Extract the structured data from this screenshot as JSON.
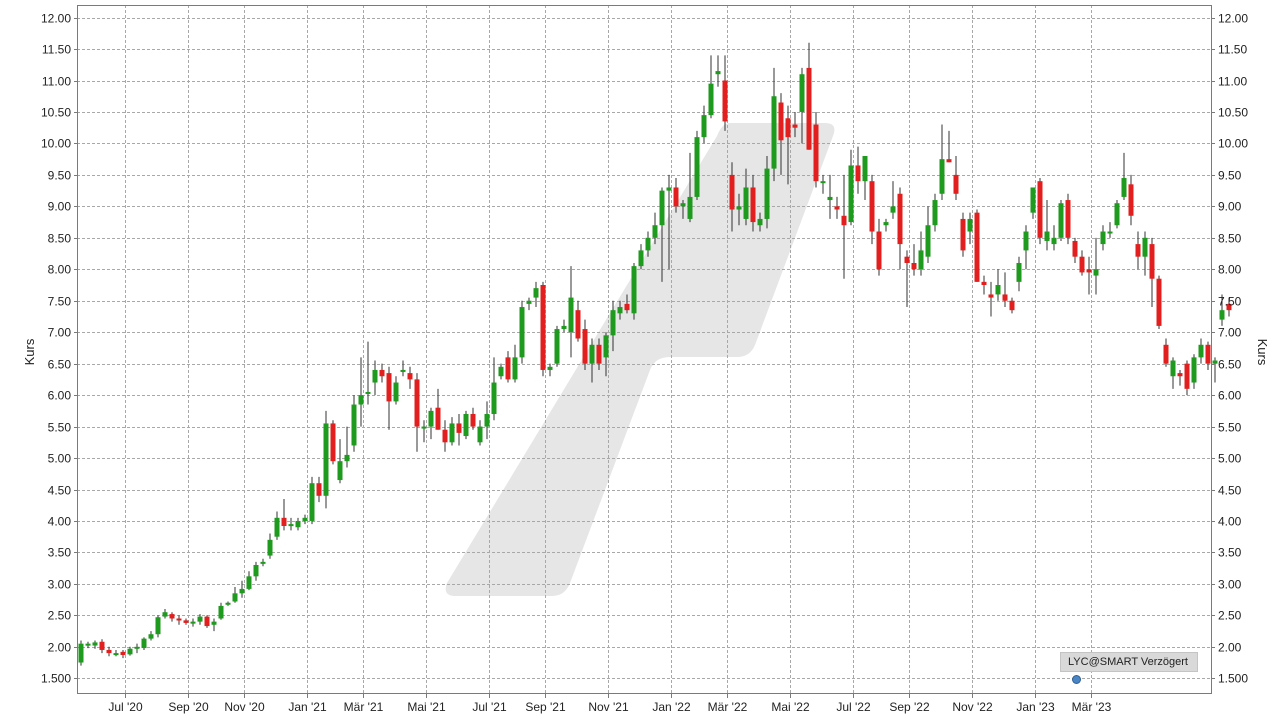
{
  "chart_data": {
    "type": "candlestick",
    "ylabel_left": "Kurs",
    "ylabel_right": "Kurs",
    "ylim": [
      1.25,
      12.2
    ],
    "y_ticks": [
      "1.500",
      "2.00",
      "2.50",
      "3.00",
      "3.50",
      "4.00",
      "4.50",
      "5.00",
      "5.50",
      "6.00",
      "6.50",
      "7.00",
      "7.50",
      "8.00",
      "8.50",
      "9.00",
      "9.50",
      "10.00",
      "10.50",
      "11.00",
      "11.50",
      "12.00"
    ],
    "y_tick_values": [
      1.5,
      2.0,
      2.5,
      3.0,
      3.5,
      4.0,
      4.5,
      5.0,
      5.5,
      6.0,
      6.5,
      7.0,
      7.5,
      8.0,
      8.5,
      9.0,
      9.5,
      10.0,
      10.5,
      11.0,
      11.5,
      12.0
    ],
    "x_ticks": [
      "Jul '20",
      "Sep '20",
      "Nov '20",
      "Jan '21",
      "Mär '21",
      "Mai '21",
      "Jul '21",
      "Sep '21",
      "Nov '21",
      "Jan '22",
      "Mär '22",
      "Mai '22",
      "Jul '22",
      "Sep '22",
      "Nov '22",
      "Jan '23",
      "Mär '23"
    ],
    "x_tick_week": [
      4,
      13,
      21,
      30,
      38,
      47,
      56,
      64,
      73,
      82,
      90,
      99,
      108,
      116,
      125,
      134,
      142
    ],
    "grid": true,
    "colors": {
      "up": "#1e9a1e",
      "down": "#e31e1e",
      "grid": "#a8a8a8",
      "axis": "#7a7a7a",
      "watermark": "#e6e6e6"
    },
    "candles": [
      {
        "o": 1.75,
        "h": 2.1,
        "l": 1.7,
        "c": 2.05
      },
      {
        "o": 2.03,
        "h": 2.08,
        "l": 1.98,
        "c": 2.05
      },
      {
        "o": 2.02,
        "h": 2.1,
        "l": 1.97,
        "c": 2.07
      },
      {
        "o": 2.08,
        "h": 2.12,
        "l": 1.9,
        "c": 1.95
      },
      {
        "o": 1.95,
        "h": 2.0,
        "l": 1.85,
        "c": 1.9
      },
      {
        "o": 1.9,
        "h": 1.95,
        "l": 1.85,
        "c": 1.9
      },
      {
        "o": 1.92,
        "h": 1.95,
        "l": 1.82,
        "c": 1.87
      },
      {
        "o": 1.88,
        "h": 2.0,
        "l": 1.86,
        "c": 1.97
      },
      {
        "o": 1.97,
        "h": 2.05,
        "l": 1.9,
        "c": 2.0
      },
      {
        "o": 1.98,
        "h": 2.15,
        "l": 1.95,
        "c": 2.13
      },
      {
        "o": 2.13,
        "h": 2.25,
        "l": 2.1,
        "c": 2.2
      },
      {
        "o": 2.2,
        "h": 2.5,
        "l": 2.15,
        "c": 2.47
      },
      {
        "o": 2.48,
        "h": 2.6,
        "l": 2.45,
        "c": 2.55
      },
      {
        "o": 2.52,
        "h": 2.55,
        "l": 2.4,
        "c": 2.45
      },
      {
        "o": 2.45,
        "h": 2.5,
        "l": 2.35,
        "c": 2.42
      },
      {
        "o": 2.42,
        "h": 2.45,
        "l": 2.35,
        "c": 2.38
      },
      {
        "o": 2.38,
        "h": 2.45,
        "l": 2.32,
        "c": 2.4
      },
      {
        "o": 2.4,
        "h": 2.52,
        "l": 2.35,
        "c": 2.48
      },
      {
        "o": 2.48,
        "h": 2.5,
        "l": 2.3,
        "c": 2.33
      },
      {
        "o": 2.35,
        "h": 2.45,
        "l": 2.25,
        "c": 2.4
      },
      {
        "o": 2.45,
        "h": 2.7,
        "l": 2.43,
        "c": 2.65
      },
      {
        "o": 2.68,
        "h": 2.72,
        "l": 2.65,
        "c": 2.7
      },
      {
        "o": 2.72,
        "h": 2.95,
        "l": 2.7,
        "c": 2.85
      },
      {
        "o": 2.85,
        "h": 3.05,
        "l": 2.78,
        "c": 2.92
      },
      {
        "o": 2.92,
        "h": 3.2,
        "l": 2.9,
        "c": 3.12
      },
      {
        "o": 3.12,
        "h": 3.35,
        "l": 3.05,
        "c": 3.3
      },
      {
        "o": 3.32,
        "h": 3.4,
        "l": 3.28,
        "c": 3.35
      },
      {
        "o": 3.45,
        "h": 3.8,
        "l": 3.4,
        "c": 3.7
      },
      {
        "o": 3.75,
        "h": 4.15,
        "l": 3.7,
        "c": 4.05
      },
      {
        "o": 4.05,
        "h": 4.35,
        "l": 3.85,
        "c": 3.92
      },
      {
        "o": 3.92,
        "h": 4.05,
        "l": 3.85,
        "c": 3.95
      },
      {
        "o": 3.9,
        "h": 4.05,
        "l": 3.85,
        "c": 4.0
      },
      {
        "o": 4.0,
        "h": 4.1,
        "l": 3.95,
        "c": 4.05
      },
      {
        "o": 4.0,
        "h": 4.7,
        "l": 3.95,
        "c": 4.6
      },
      {
        "o": 4.6,
        "h": 4.7,
        "l": 4.3,
        "c": 4.4
      },
      {
        "o": 4.4,
        "h": 5.75,
        "l": 4.2,
        "c": 5.55
      },
      {
        "o": 5.55,
        "h": 5.6,
        "l": 4.9,
        "c": 4.95
      },
      {
        "o": 4.65,
        "h": 5.3,
        "l": 4.6,
        "c": 4.95
      },
      {
        "o": 4.95,
        "h": 5.5,
        "l": 4.85,
        "c": 5.05
      },
      {
        "o": 5.2,
        "h": 6.0,
        "l": 5.1,
        "c": 5.85
      },
      {
        "o": 5.85,
        "h": 6.6,
        "l": 5.5,
        "c": 6.0
      },
      {
        "o": 6.05,
        "h": 6.85,
        "l": 5.85,
        "c": 6.05
      },
      {
        "o": 6.2,
        "h": 6.55,
        "l": 6.0,
        "c": 6.4
      },
      {
        "o": 6.4,
        "h": 6.5,
        "l": 6.2,
        "c": 6.3
      },
      {
        "o": 6.35,
        "h": 6.45,
        "l": 5.45,
        "c": 5.9
      },
      {
        "o": 5.9,
        "h": 6.3,
        "l": 5.85,
        "c": 6.2
      },
      {
        "o": 6.4,
        "h": 6.55,
        "l": 6.3,
        "c": 6.4
      },
      {
        "o": 6.35,
        "h": 6.45,
        "l": 6.1,
        "c": 6.25
      },
      {
        "o": 6.25,
        "h": 6.35,
        "l": 5.1,
        "c": 5.5
      },
      {
        "o": 5.5,
        "h": 5.6,
        "l": 5.25,
        "c": 5.5
      },
      {
        "o": 5.5,
        "h": 5.8,
        "l": 5.3,
        "c": 5.75
      },
      {
        "o": 5.8,
        "h": 6.1,
        "l": 5.45,
        "c": 5.45
      },
      {
        "o": 5.45,
        "h": 5.6,
        "l": 5.1,
        "c": 5.25
      },
      {
        "o": 5.25,
        "h": 5.65,
        "l": 5.2,
        "c": 5.55
      },
      {
        "o": 5.55,
        "h": 5.7,
        "l": 5.2,
        "c": 5.4
      },
      {
        "o": 5.35,
        "h": 5.75,
        "l": 5.3,
        "c": 5.7
      },
      {
        "o": 5.7,
        "h": 5.8,
        "l": 5.45,
        "c": 5.5
      },
      {
        "o": 5.25,
        "h": 5.6,
        "l": 5.2,
        "c": 5.5
      },
      {
        "o": 5.5,
        "h": 5.9,
        "l": 5.3,
        "c": 5.7
      },
      {
        "o": 5.7,
        "h": 6.6,
        "l": 5.6,
        "c": 6.2
      },
      {
        "o": 6.3,
        "h": 6.5,
        "l": 6.25,
        "c": 6.45
      },
      {
        "o": 6.6,
        "h": 6.7,
        "l": 6.2,
        "c": 6.25
      },
      {
        "o": 6.25,
        "h": 6.8,
        "l": 6.2,
        "c": 6.6
      },
      {
        "o": 6.6,
        "h": 7.5,
        "l": 6.5,
        "c": 7.4
      },
      {
        "o": 7.45,
        "h": 7.55,
        "l": 7.35,
        "c": 7.5
      },
      {
        "o": 7.55,
        "h": 7.8,
        "l": 7.4,
        "c": 7.7
      },
      {
        "o": 7.75,
        "h": 7.8,
        "l": 6.3,
        "c": 6.4
      },
      {
        "o": 6.4,
        "h": 6.5,
        "l": 6.3,
        "c": 6.45
      },
      {
        "o": 6.5,
        "h": 7.1,
        "l": 6.45,
        "c": 7.05
      },
      {
        "o": 7.05,
        "h": 7.2,
        "l": 7.0,
        "c": 7.1
      },
      {
        "o": 7.0,
        "h": 8.05,
        "l": 6.6,
        "c": 7.55
      },
      {
        "o": 7.35,
        "h": 7.5,
        "l": 6.85,
        "c": 6.9
      },
      {
        "o": 7.05,
        "h": 7.2,
        "l": 6.4,
        "c": 6.5
      },
      {
        "o": 6.5,
        "h": 6.9,
        "l": 6.2,
        "c": 6.8
      },
      {
        "o": 6.8,
        "h": 6.9,
        "l": 6.4,
        "c": 6.5
      },
      {
        "o": 6.6,
        "h": 7.0,
        "l": 6.3,
        "c": 6.95
      },
      {
        "o": 6.95,
        "h": 7.5,
        "l": 6.7,
        "c": 7.35
      },
      {
        "o": 7.3,
        "h": 7.5,
        "l": 7.2,
        "c": 7.4
      },
      {
        "o": 7.45,
        "h": 7.6,
        "l": 7.3,
        "c": 7.35
      },
      {
        "o": 7.3,
        "h": 8.1,
        "l": 7.2,
        "c": 8.05
      },
      {
        "o": 8.05,
        "h": 8.4,
        "l": 8.0,
        "c": 8.3
      },
      {
        "o": 8.3,
        "h": 8.6,
        "l": 8.2,
        "c": 8.5
      },
      {
        "o": 8.5,
        "h": 8.9,
        "l": 8.4,
        "c": 8.7
      },
      {
        "o": 8.7,
        "h": 9.3,
        "l": 7.8,
        "c": 9.25
      },
      {
        "o": 9.25,
        "h": 9.5,
        "l": 8.0,
        "c": 9.3
      },
      {
        "o": 9.3,
        "h": 9.45,
        "l": 8.9,
        "c": 9.0
      },
      {
        "o": 9.0,
        "h": 9.1,
        "l": 8.8,
        "c": 9.05
      },
      {
        "o": 8.8,
        "h": 9.85,
        "l": 8.75,
        "c": 9.15
      },
      {
        "o": 9.15,
        "h": 10.2,
        "l": 9.1,
        "c": 10.1
      },
      {
        "o": 10.1,
        "h": 10.6,
        "l": 10.0,
        "c": 10.45
      },
      {
        "o": 10.45,
        "h": 11.4,
        "l": 10.4,
        "c": 10.95
      },
      {
        "o": 11.1,
        "h": 11.4,
        "l": 10.9,
        "c": 11.15
      },
      {
        "o": 11.0,
        "h": 11.4,
        "l": 10.2,
        "c": 10.35
      },
      {
        "o": 9.5,
        "h": 9.7,
        "l": 8.6,
        "c": 8.95
      },
      {
        "o": 8.95,
        "h": 9.2,
        "l": 8.7,
        "c": 9.0
      },
      {
        "o": 8.8,
        "h": 9.6,
        "l": 8.7,
        "c": 9.3
      },
      {
        "o": 9.3,
        "h": 9.5,
        "l": 8.6,
        "c": 8.75
      },
      {
        "o": 8.7,
        "h": 8.9,
        "l": 8.6,
        "c": 8.8
      },
      {
        "o": 8.8,
        "h": 9.8,
        "l": 8.65,
        "c": 9.6
      },
      {
        "o": 9.6,
        "h": 11.2,
        "l": 9.4,
        "c": 10.75
      },
      {
        "o": 10.65,
        "h": 10.8,
        "l": 9.5,
        "c": 10.05
      },
      {
        "o": 10.4,
        "h": 10.6,
        "l": 9.35,
        "c": 10.1
      },
      {
        "o": 10.3,
        "h": 10.5,
        "l": 10.1,
        "c": 10.25
      },
      {
        "o": 10.5,
        "h": 11.2,
        "l": 10.0,
        "c": 11.1
      },
      {
        "o": 11.2,
        "h": 11.6,
        "l": 9.9,
        "c": 9.9
      },
      {
        "o": 10.3,
        "h": 10.5,
        "l": 9.3,
        "c": 9.4
      },
      {
        "o": 9.4,
        "h": 9.5,
        "l": 9.2,
        "c": 9.4
      },
      {
        "o": 9.1,
        "h": 9.5,
        "l": 8.8,
        "c": 9.15
      },
      {
        "o": 9.0,
        "h": 9.15,
        "l": 8.8,
        "c": 8.95
      },
      {
        "o": 8.85,
        "h": 9.5,
        "l": 7.85,
        "c": 8.7
      },
      {
        "o": 8.75,
        "h": 9.9,
        "l": 8.7,
        "c": 9.65
      },
      {
        "o": 9.65,
        "h": 9.95,
        "l": 9.2,
        "c": 9.4
      },
      {
        "o": 9.4,
        "h": 9.8,
        "l": 9.1,
        "c": 9.8
      },
      {
        "o": 9.4,
        "h": 9.5,
        "l": 8.4,
        "c": 8.6
      },
      {
        "o": 8.6,
        "h": 8.8,
        "l": 7.9,
        "c": 8.0
      },
      {
        "o": 8.7,
        "h": 8.8,
        "l": 8.6,
        "c": 8.75
      },
      {
        "o": 8.9,
        "h": 9.4,
        "l": 8.8,
        "c": 9.0
      },
      {
        "o": 9.2,
        "h": 9.3,
        "l": 8.0,
        "c": 8.4
      },
      {
        "o": 8.2,
        "h": 8.3,
        "l": 7.4,
        "c": 8.1
      },
      {
        "o": 8.1,
        "h": 8.4,
        "l": 7.9,
        "c": 8.0
      },
      {
        "o": 8.0,
        "h": 8.6,
        "l": 7.9,
        "c": 8.3
      },
      {
        "o": 8.2,
        "h": 9.0,
        "l": 8.1,
        "c": 8.7
      },
      {
        "o": 8.7,
        "h": 9.2,
        "l": 8.6,
        "c": 9.1
      },
      {
        "o": 9.2,
        "h": 10.3,
        "l": 9.1,
        "c": 9.75
      },
      {
        "o": 9.75,
        "h": 10.2,
        "l": 9.7,
        "c": 9.7
      },
      {
        "o": 9.5,
        "h": 9.8,
        "l": 9.1,
        "c": 9.2
      },
      {
        "o": 8.8,
        "h": 8.9,
        "l": 8.2,
        "c": 8.3
      },
      {
        "o": 8.6,
        "h": 8.9,
        "l": 8.4,
        "c": 8.8
      },
      {
        "o": 8.9,
        "h": 8.95,
        "l": 7.8,
        "c": 7.8
      },
      {
        "o": 7.8,
        "h": 7.9,
        "l": 7.6,
        "c": 7.75
      },
      {
        "o": 7.6,
        "h": 7.8,
        "l": 7.25,
        "c": 7.55
      },
      {
        "o": 7.6,
        "h": 8.0,
        "l": 7.5,
        "c": 7.75
      },
      {
        "o": 7.6,
        "h": 7.95,
        "l": 7.4,
        "c": 7.5
      },
      {
        "o": 7.5,
        "h": 7.55,
        "l": 7.3,
        "c": 7.35
      },
      {
        "o": 7.8,
        "h": 8.2,
        "l": 7.65,
        "c": 8.1
      },
      {
        "o": 8.3,
        "h": 8.7,
        "l": 8.0,
        "c": 8.6
      },
      {
        "o": 8.9,
        "h": 9.3,
        "l": 8.8,
        "c": 9.3
      },
      {
        "o": 9.4,
        "h": 9.45,
        "l": 8.4,
        "c": 8.5
      },
      {
        "o": 8.45,
        "h": 9.1,
        "l": 8.3,
        "c": 8.6
      },
      {
        "o": 8.4,
        "h": 8.7,
        "l": 8.3,
        "c": 8.5
      },
      {
        "o": 8.5,
        "h": 9.1,
        "l": 8.45,
        "c": 9.05
      },
      {
        "o": 9.1,
        "h": 9.2,
        "l": 8.4,
        "c": 8.5
      },
      {
        "o": 8.45,
        "h": 8.5,
        "l": 8.1,
        "c": 8.2
      },
      {
        "o": 8.2,
        "h": 8.3,
        "l": 7.9,
        "c": 7.95
      },
      {
        "o": 8.0,
        "h": 8.2,
        "l": 7.6,
        "c": 7.95
      },
      {
        "o": 7.9,
        "h": 8.5,
        "l": 7.6,
        "c": 8.0
      },
      {
        "o": 8.4,
        "h": 8.7,
        "l": 8.3,
        "c": 8.6
      },
      {
        "o": 8.6,
        "h": 8.75,
        "l": 8.5,
        "c": 8.6
      },
      {
        "o": 8.7,
        "h": 9.1,
        "l": 8.65,
        "c": 9.05
      },
      {
        "o": 9.15,
        "h": 9.85,
        "l": 9.1,
        "c": 9.45
      },
      {
        "o": 9.35,
        "h": 9.5,
        "l": 8.7,
        "c": 8.85
      },
      {
        "o": 8.4,
        "h": 8.6,
        "l": 8.0,
        "c": 8.2
      },
      {
        "o": 8.2,
        "h": 8.6,
        "l": 7.9,
        "c": 8.5
      },
      {
        "o": 8.4,
        "h": 8.5,
        "l": 7.4,
        "c": 7.85
      },
      {
        "o": 7.85,
        "h": 7.9,
        "l": 7.05,
        "c": 7.1
      },
      {
        "o": 6.8,
        "h": 6.9,
        "l": 6.45,
        "c": 6.5
      },
      {
        "o": 6.3,
        "h": 6.6,
        "l": 6.1,
        "c": 6.55
      },
      {
        "o": 6.35,
        "h": 6.4,
        "l": 6.15,
        "c": 6.3
      },
      {
        "o": 6.5,
        "h": 6.55,
        "l": 6.0,
        "c": 6.1
      },
      {
        "o": 6.2,
        "h": 6.65,
        "l": 6.1,
        "c": 6.6
      },
      {
        "o": 6.6,
        "h": 6.9,
        "l": 6.5,
        "c": 6.8
      },
      {
        "o": 6.8,
        "h": 6.85,
        "l": 6.4,
        "c": 6.5
      },
      {
        "o": 6.5,
        "h": 6.6,
        "l": 6.2,
        "c": 6.55
      },
      {
        "o": 7.2,
        "h": 7.6,
        "l": 7.1,
        "c": 7.35
      },
      {
        "o": 7.45,
        "h": 7.55,
        "l": 7.25,
        "c": 7.35
      }
    ]
  },
  "source": {
    "label": "LYC@SMART Verzögert"
  }
}
